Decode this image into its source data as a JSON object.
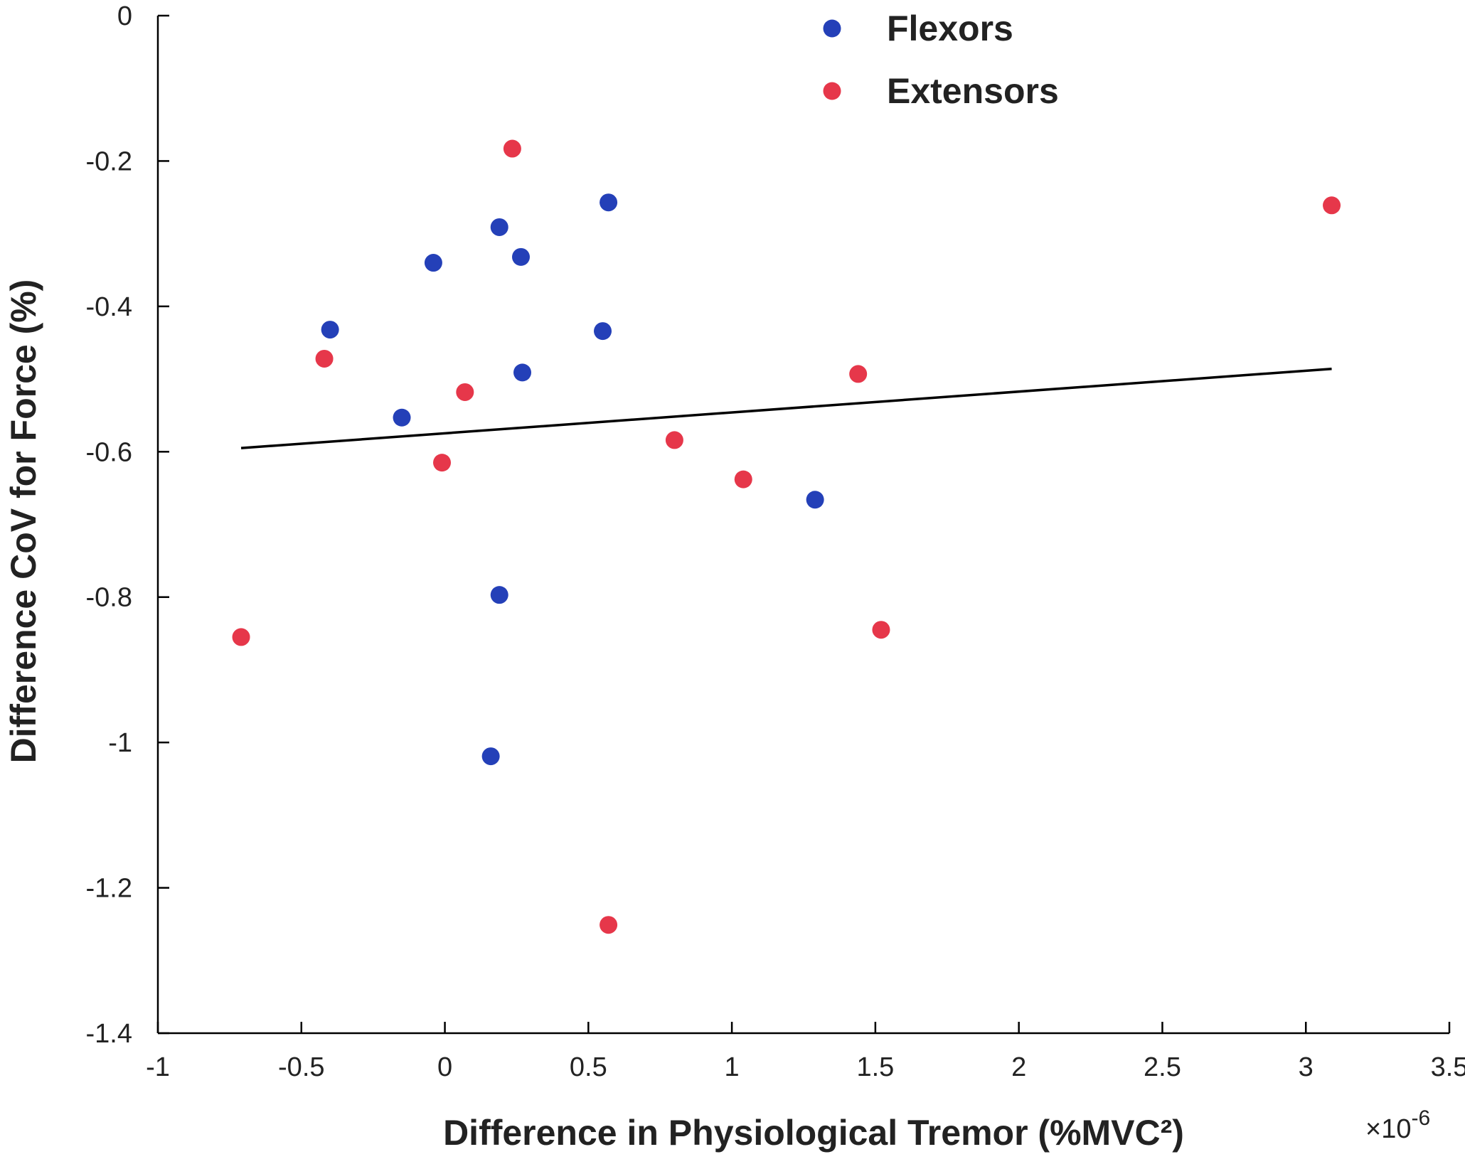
{
  "chart_data": {
    "type": "scatter",
    "xlabel": "Difference in Physiological Tremor (%MVC²)",
    "ylabel": "Difference CoV for Force (%)",
    "x_exponent_label": "×10",
    "x_exponent_power": "-6",
    "xlim": [
      -1,
      3.5
    ],
    "ylim": [
      -1.4,
      0
    ],
    "x_ticks": [
      -1,
      -0.5,
      0,
      0.5,
      1,
      1.5,
      2,
      2.5,
      3,
      3.5
    ],
    "x_tick_labels": [
      "-1",
      "-0.5",
      "0",
      "0.5",
      "1",
      "1.5",
      "2",
      "2.5",
      "3",
      "3.5"
    ],
    "y_ticks": [
      0,
      -0.2,
      -0.4,
      -0.6,
      -0.8,
      -1,
      -1.2,
      -1.4
    ],
    "y_tick_labels": [
      "0",
      "-0.2",
      "-0.4",
      "-0.6",
      "-0.8",
      "-1",
      "-1.2",
      "-1.4"
    ],
    "grid": false,
    "legend_position": "top",
    "series": [
      {
        "name": "Flexors",
        "color": "#2440b8",
        "points": [
          {
            "x": -0.4,
            "y": -0.432
          },
          {
            "x": -0.15,
            "y": -0.553
          },
          {
            "x": -0.04,
            "y": -0.34
          },
          {
            "x": 0.19,
            "y": -0.291
          },
          {
            "x": 0.265,
            "y": -0.332
          },
          {
            "x": 0.27,
            "y": -0.491
          },
          {
            "x": 0.19,
            "y": -0.797
          },
          {
            "x": 0.16,
            "y": -1.019
          },
          {
            "x": 0.55,
            "y": -0.434
          },
          {
            "x": 0.57,
            "y": -0.257
          },
          {
            "x": 1.29,
            "y": -0.666
          }
        ]
      },
      {
        "name": "Extensors",
        "color": "#e6374a",
        "points": [
          {
            "x": -0.71,
            "y": -0.855
          },
          {
            "x": -0.42,
            "y": -0.472
          },
          {
            "x": -0.01,
            "y": -0.615
          },
          {
            "x": 0.07,
            "y": -0.518
          },
          {
            "x": 0.235,
            "y": -0.183
          },
          {
            "x": 0.57,
            "y": -1.251
          },
          {
            "x": 0.8,
            "y": -0.584
          },
          {
            "x": 1.04,
            "y": -0.638
          },
          {
            "x": 1.44,
            "y": -0.493
          },
          {
            "x": 1.52,
            "y": -0.845
          },
          {
            "x": 3.09,
            "y": -0.261
          }
        ]
      }
    ],
    "fit_line": {
      "x": [
        -0.71,
        3.09
      ],
      "y": [
        -0.595,
        -0.486
      ],
      "color": "#000000"
    }
  }
}
